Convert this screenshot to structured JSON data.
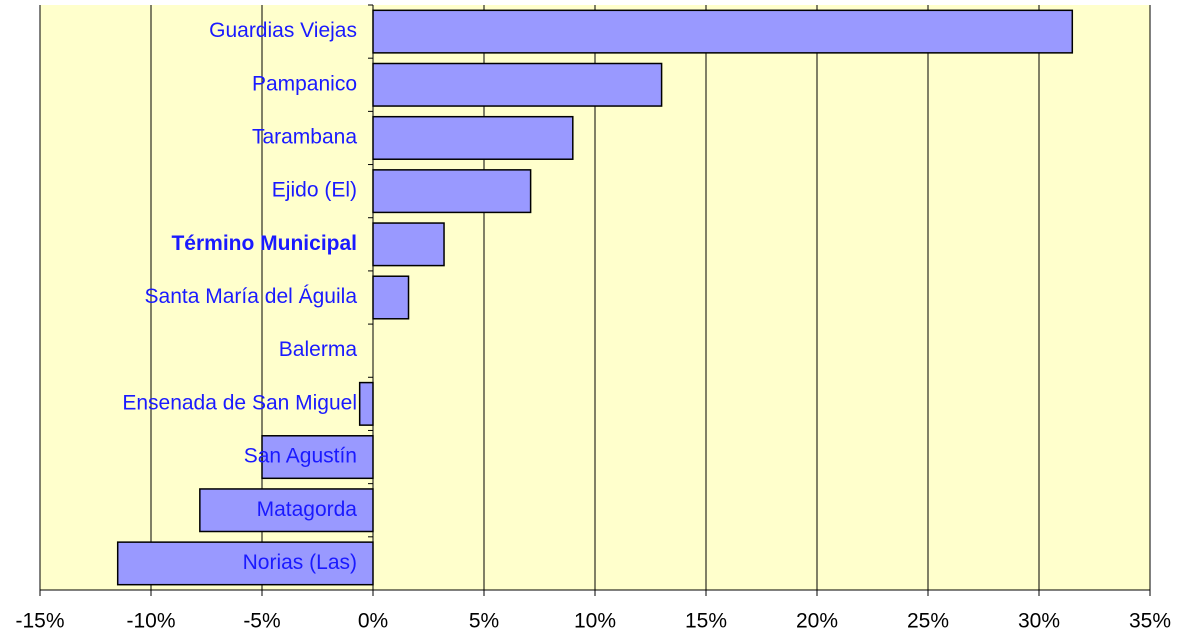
{
  "chart_data": {
    "type": "bar",
    "orientation": "horizontal",
    "categories": [
      "Guardias Viejas",
      "Pampanico",
      "Tarambana",
      "Ejido (El)",
      "Término Municipal",
      "Santa María del Águila",
      "Balerma",
      "Ensenada de San Miguel",
      "San Agustín",
      "Matagorda",
      "Norias (Las)"
    ],
    "values": [
      31.5,
      13,
      9,
      7.1,
      3.2,
      1.6,
      0,
      -0.6,
      -5,
      -7.8,
      -11.5
    ],
    "color": "#9999ff",
    "background": "#ffffcc",
    "xlim": [
      -15,
      35
    ],
    "xticks": [
      {
        "value": -15,
        "label": "-15%"
      },
      {
        "value": -10,
        "label": "-10%"
      },
      {
        "value": -5,
        "label": "-5%"
      },
      {
        "value": 0,
        "label": "0%"
      },
      {
        "value": 5,
        "label": "5%"
      },
      {
        "value": 10,
        "label": "10%"
      },
      {
        "value": 15,
        "label": "15%"
      },
      {
        "value": 20,
        "label": "20%"
      },
      {
        "value": 25,
        "label": "25%"
      },
      {
        "value": 30,
        "label": "30%"
      },
      {
        "value": 35,
        "label": "35%"
      }
    ],
    "grid": true
  }
}
